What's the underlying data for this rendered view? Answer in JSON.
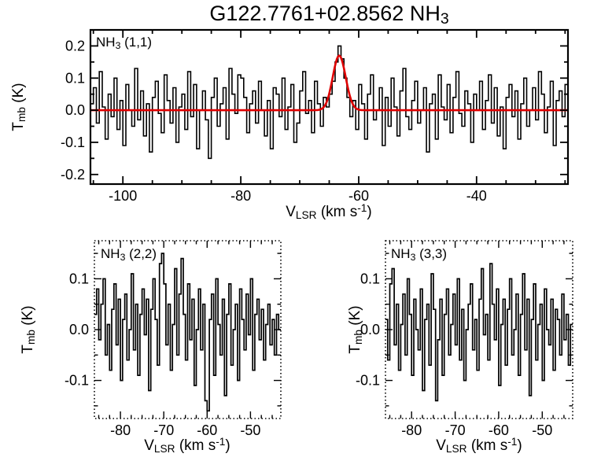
{
  "title": {
    "pre": "G122.7761+02.8562 NH",
    "sub": "3"
  },
  "colors": {
    "spectrum": "#000000",
    "fit": "#e00000",
    "background": "#ffffff"
  },
  "chart_data": [
    {
      "type": "line",
      "style": "histogram-step",
      "label": {
        "pre": "NH",
        "sub": "3",
        "post": " (1,1)"
      },
      "xlabel": {
        "pre": "V",
        "sub": "LSR",
        "mid": " (km s",
        "sup": "-1",
        "post": ")"
      },
      "ylabel": {
        "pre": "T",
        "sub": "mb",
        "post": " (K)"
      },
      "xlim": [
        -105.5,
        -24.5
      ],
      "ylim": [
        -0.23,
        0.25
      ],
      "xticks": {
        "values": [
          -100,
          -80,
          -60,
          -40
        ],
        "labels": [
          "-100",
          "-80",
          "-60",
          "-40"
        ],
        "minor_step": 5
      },
      "yticks": {
        "values": [
          0.2,
          0.1,
          0.0,
          -0.1,
          -0.2
        ],
        "labels": [
          "0.2",
          "0.1",
          "0.0",
          "-0.1",
          "-0.2"
        ],
        "minor_step": 0.05
      },
      "x_start": -105.5,
      "dx": 0.5,
      "values": [
        0.02,
        0.07,
        -0.04,
        0.12,
        0.01,
        -0.09,
        0.05,
        -0.02,
        0.1,
        -0.06,
        0.03,
        -0.11,
        0.08,
        0.0,
        -0.05,
        0.13,
        -0.03,
        0.06,
        -0.08,
        0.02,
        -0.13,
        0.04,
        0.09,
        -0.01,
        -0.07,
        0.11,
        0.03,
        -0.04,
        0.07,
        -0.1,
        0.01,
        0.05,
        -0.06,
        0.12,
        -0.02,
        0.08,
        -0.12,
        0.0,
        0.06,
        -0.03,
        -0.15,
        0.04,
        0.1,
        -0.05,
        0.02,
        0.07,
        -0.09,
        0.13,
        0.05,
        -0.01,
        0.11,
        0.1,
        0.04,
        -0.07,
        0.02,
        0.06,
        -0.04,
        0.09,
        0.0,
        -0.08,
        0.03,
        -0.12,
        0.07,
        0.05,
        -0.02,
        0.1,
        -0.06,
        0.01,
        0.08,
        -0.1,
        -0.04,
        0.06,
        0.12,
        -0.01,
        0.03,
        -0.07,
        0.09,
        0.02,
        -0.05,
        0.04,
        0.01,
        0.05,
        0.09,
        0.15,
        0.2,
        0.16,
        0.1,
        0.04,
        -0.02,
        0.03,
        -0.06,
        0.08,
        0.02,
        -0.09,
        0.05,
        0.11,
        -0.03,
        0.0,
        0.07,
        -0.11,
        0.04,
        -0.05,
        0.1,
        0.01,
        -0.08,
        0.06,
        0.13,
        -0.02,
        -0.06,
        0.03,
        0.09,
        -0.04,
        0.0,
        0.07,
        -0.13,
        0.02,
        0.05,
        -0.09,
        0.11,
        0.01,
        -0.03,
        0.08,
        -0.07,
        0.04,
        0.12,
        -0.01,
        -0.05,
        0.06,
        0.02,
        -0.1,
        0.05,
        0.0,
        0.09,
        -0.06,
        0.03,
        0.11,
        -0.04,
        0.07,
        -0.08,
        0.01,
        -0.12,
        0.04,
        0.08,
        -0.02,
        0.06,
        -0.09,
        0.02,
        0.1,
        -0.05,
        0.0,
        0.07,
        -0.03,
        0.12,
        0.05,
        -0.07,
        0.01,
        0.09,
        -0.11,
        0.03,
        0.06,
        -0.02,
        0.08
      ],
      "fit": {
        "type": "gaussian",
        "amplitude": 0.17,
        "center": -63.3,
        "sigma": 1.1
      }
    },
    {
      "type": "line",
      "style": "histogram-step",
      "label": {
        "pre": "NH",
        "sub": "3",
        "post": " (2,2)"
      },
      "xlabel": {
        "pre": "V",
        "sub": "LSR",
        "mid": " (km s",
        "sup": "-1",
        "post": ")"
      },
      "ylabel": {
        "pre": "T",
        "sub": "mb",
        "post": " (K)"
      },
      "xlim": [
        -86,
        -43
      ],
      "ylim": [
        -0.175,
        0.175
      ],
      "xticks": {
        "values": [
          -80,
          -70,
          -60,
          -50
        ],
        "labels": [
          "-80",
          "-70",
          "-60",
          "-50"
        ],
        "minor_step": 2.5
      },
      "yticks": {
        "values": [
          0.1,
          0.0,
          -0.1
        ],
        "labels": [
          "0.1",
          "0.0",
          "-0.1"
        ],
        "minor_step": 0.05
      },
      "x_start": -86,
      "dx": 0.5,
      "values": [
        0.03,
        0.08,
        -0.02,
        0.05,
        0.1,
        -0.05,
        0.01,
        -0.08,
        0.04,
        0.09,
        -0.03,
        0.06,
        -0.1,
        0.02,
        0.07,
        -0.06,
        0.0,
        0.11,
        -0.04,
        0.05,
        -0.09,
        0.03,
        0.08,
        -0.01,
        0.06,
        -0.12,
        0.04,
        0.1,
        0.02,
        -0.07,
        0.13,
        0.15,
        0.09,
        -0.03,
        0.05,
        -0.08,
        0.01,
        0.12,
        -0.05,
        0.07,
        0.14,
        0.03,
        -0.06,
        0.09,
        -0.02,
        0.06,
        -0.11,
        0.0,
        0.08,
        -0.04,
        0.05,
        -0.14,
        -0.16,
        0.02,
        0.07,
        -0.09,
        0.1,
        0.01,
        -0.05,
        0.06,
        -0.13,
        0.03,
        0.09,
        -0.07,
        0.0,
        0.05,
        -0.1,
        0.08,
        0.02,
        -0.04,
        0.07,
        -0.01,
        0.1,
        -0.08,
        0.03,
        0.06,
        -0.02,
        0.04,
        -0.06,
        0.01,
        0.05,
        -0.03,
        0.02,
        -0.05,
        0.03,
        0.0
      ],
      "fit": null
    },
    {
      "type": "line",
      "style": "histogram-step",
      "label": {
        "pre": "NH",
        "sub": "3",
        "post": " (3,3)"
      },
      "xlabel": {
        "pre": "V",
        "sub": "LSR",
        "mid": " (km s",
        "sup": "-1",
        "post": ")"
      },
      "ylabel": {
        "pre": "T",
        "sub": "mb",
        "post": " (K)"
      },
      "xlim": [
        -86,
        -43
      ],
      "ylim": [
        -0.175,
        0.175
      ],
      "xticks": {
        "values": [
          -80,
          -70,
          -60,
          -50
        ],
        "labels": [
          "-80",
          "-70",
          "-60",
          "-50"
        ],
        "minor_step": 2.5
      },
      "yticks": {
        "values": [
          0.1,
          0.0,
          -0.1
        ],
        "labels": [
          "0.1",
          "0.0",
          "-0.1"
        ],
        "minor_step": 0.05
      },
      "x_start": -86,
      "dx": 0.5,
      "values": [
        0.02,
        -0.06,
        0.09,
        0.12,
        -0.03,
        0.05,
        -0.08,
        0.01,
        0.07,
        -0.05,
        0.1,
        0.03,
        -0.09,
        0.06,
        0.0,
        -0.04,
        0.08,
        -0.12,
        0.02,
        0.05,
        -0.07,
        0.11,
        0.04,
        -0.14,
        -0.02,
        0.06,
        -0.09,
        0.03,
        0.08,
        -0.05,
        0.01,
        0.07,
        -0.03,
        0.1,
        -0.06,
        0.04,
        -0.1,
        0.0,
        0.05,
        0.09,
        -0.04,
        0.02,
        -0.08,
        0.06,
        0.12,
        -0.01,
        0.03,
        -0.06,
        0.13,
        0.05,
        -0.02,
        0.08,
        -0.11,
        0.01,
        0.06,
        -0.07,
        0.04,
        0.1,
        -0.05,
        0.0,
        0.07,
        -0.09,
        0.03,
        0.11,
        -0.04,
        0.06,
        -0.13,
        0.02,
        0.09,
        -0.06,
        0.01,
        0.05,
        -0.1,
        0.08,
        0.0,
        -0.03,
        0.06,
        -0.08,
        0.04,
        0.02,
        -0.05,
        0.07,
        -0.02,
        0.03,
        -0.07,
        0.01
      ],
      "fit": null
    }
  ]
}
